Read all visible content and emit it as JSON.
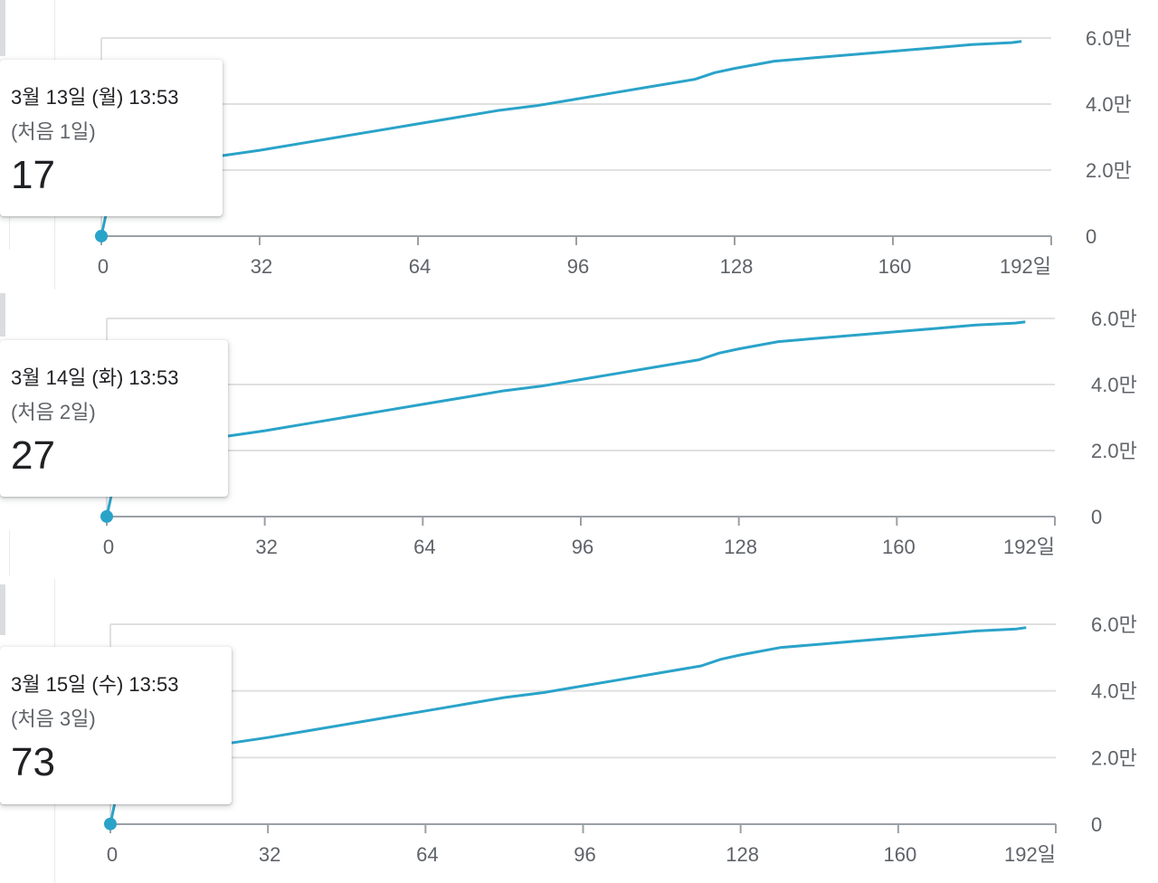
{
  "colors": {
    "series": "#2aa3c9",
    "grid": "#e0e0e0",
    "axis": "#9aa0a6",
    "tick_text": "#5f6368"
  },
  "charts": [
    {
      "tooltip": {
        "date": "3월 13일 (월) 13:53",
        "sub": "(처음 1일)",
        "value": "17"
      }
    },
    {
      "tooltip": {
        "date": "3월 14일 (화) 13:53",
        "sub": "(처음 2일)",
        "value": "27"
      }
    },
    {
      "tooltip": {
        "date": "3월 15일 (수) 13:53",
        "sub": "(처음 3일)",
        "value": "73"
      }
    }
  ],
  "chart_data": [
    {
      "type": "line",
      "x_ticks": [
        "0",
        "32",
        "64",
        "96",
        "128",
        "160",
        "192일"
      ],
      "y_ticks": [
        "0",
        "2.0만",
        "4.0만",
        "6.0만"
      ],
      "xlim": [
        0,
        192
      ],
      "ylim": [
        0,
        60000
      ],
      "grid": true,
      "series": [
        {
          "x": [
            0,
            1,
            3,
            6,
            10,
            15,
            20,
            25,
            32,
            40,
            48,
            56,
            64,
            72,
            80,
            88,
            96,
            104,
            112,
            120,
            124,
            128,
            136,
            144,
            152,
            160,
            168,
            176,
            184,
            186
          ],
          "y": [
            17,
            7000,
            13000,
            18000,
            21000,
            22500,
            23500,
            24500,
            26000,
            28000,
            30000,
            32000,
            34000,
            36000,
            38000,
            39500,
            41500,
            43500,
            45500,
            47500,
            49500,
            50800,
            53000,
            54000,
            55000,
            56000,
            57000,
            58000,
            58600,
            59000
          ],
          "highlight": {
            "x": 0,
            "y": 17
          }
        }
      ]
    },
    {
      "type": "line",
      "x_ticks": [
        "0",
        "32",
        "64",
        "96",
        "128",
        "160",
        "192일"
      ],
      "y_ticks": [
        "0",
        "2.0만",
        "4.0만",
        "6.0만"
      ],
      "xlim": [
        0,
        192
      ],
      "ylim": [
        0,
        60000
      ],
      "grid": true,
      "series": [
        {
          "x": [
            0,
            1,
            3,
            6,
            10,
            15,
            20,
            25,
            32,
            40,
            48,
            56,
            64,
            72,
            80,
            88,
            96,
            104,
            112,
            120,
            124,
            128,
            136,
            144,
            152,
            160,
            168,
            176,
            184,
            186
          ],
          "y": [
            27,
            7000,
            13000,
            18000,
            21000,
            22500,
            23500,
            24500,
            26000,
            28000,
            30000,
            32000,
            34000,
            36000,
            38000,
            39500,
            41500,
            43500,
            45500,
            47500,
            49500,
            50800,
            53000,
            54000,
            55000,
            56000,
            57000,
            58000,
            58600,
            59000
          ],
          "highlight": {
            "x": 0,
            "y": 27
          }
        }
      ]
    },
    {
      "type": "line",
      "x_ticks": [
        "0",
        "32",
        "64",
        "96",
        "128",
        "160",
        "192일"
      ],
      "y_ticks": [
        "0",
        "2.0만",
        "4.0만",
        "6.0만"
      ],
      "xlim": [
        0,
        192
      ],
      "ylim": [
        0,
        60000
      ],
      "grid": true,
      "series": [
        {
          "x": [
            0,
            1,
            3,
            6,
            10,
            15,
            20,
            25,
            32,
            40,
            48,
            56,
            64,
            72,
            80,
            88,
            96,
            104,
            112,
            120,
            124,
            128,
            136,
            144,
            152,
            160,
            168,
            176,
            184,
            186
          ],
          "y": [
            73,
            7000,
            13000,
            18000,
            21000,
            22500,
            23500,
            24500,
            26000,
            28000,
            30000,
            32000,
            34000,
            36000,
            38000,
            39500,
            41500,
            43500,
            45500,
            47500,
            49500,
            50800,
            53000,
            54000,
            55000,
            56000,
            57000,
            58000,
            58600,
            59000
          ],
          "highlight": {
            "x": 0,
            "y": 73
          }
        }
      ]
    }
  ]
}
